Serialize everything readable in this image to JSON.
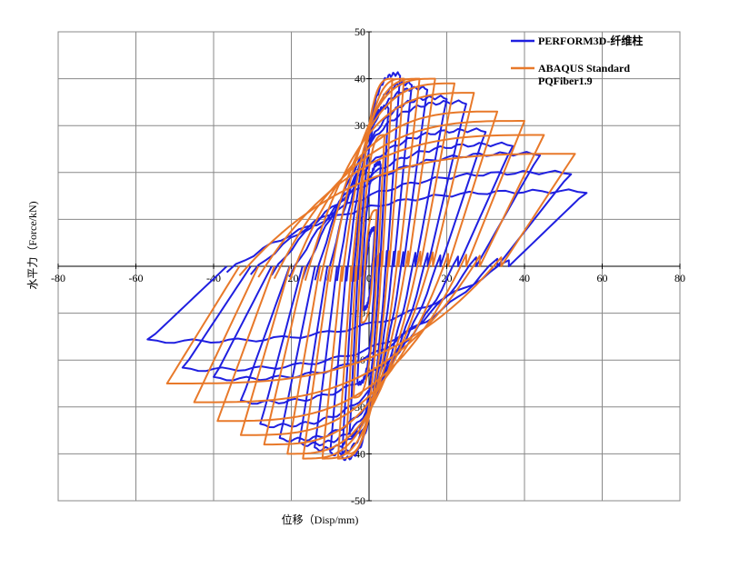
{
  "chart_data": {
    "type": "line",
    "xlabel": "位移（Disp/mm)",
    "ylabel": "水平力（Force/kN)",
    "xlim": [
      -80,
      80
    ],
    "ylim": [
      -50,
      50
    ],
    "x_ticks": [
      "-80",
      "-60",
      "-40",
      "-20",
      "0",
      "20",
      "40",
      "60",
      "80"
    ],
    "y_ticks": [
      "50",
      "40",
      "30",
      "20",
      "10",
      "0",
      "-10",
      "-20",
      "-30",
      "-40",
      "-50"
    ],
    "grid": true,
    "legend_position": "top-right",
    "series": [
      {
        "name": "PERFORM3D-纤维柱",
        "color": "#1f1fe0",
        "loops": [
          {
            "dmax": 1.5,
            "fmax": 8,
            "dmin": -1.5,
            "fmin": -9
          },
          {
            "dmax": 3,
            "fmax": 22,
            "dmin": -3,
            "fmin": -25
          },
          {
            "dmax": 5,
            "fmax": 34,
            "dmin": -5,
            "fmin": -36
          },
          {
            "dmax": 8,
            "fmax": 41,
            "dmin": -7,
            "fmin": -41
          },
          {
            "dmax": 11,
            "fmax": 39,
            "dmin": -10,
            "fmin": -40
          },
          {
            "dmax": 15,
            "fmax": 38,
            "dmin": -14,
            "fmin": -39
          },
          {
            "dmax": 20,
            "fmax": 36,
            "dmin": -18,
            "fmin": -38
          },
          {
            "dmax": 25,
            "fmax": 35,
            "dmin": -23,
            "fmin": -37
          },
          {
            "dmax": 30,
            "fmax": 29,
            "dmin": -28,
            "fmin": -34
          },
          {
            "dmax": 37,
            "fmax": 26,
            "dmin": -33,
            "fmin": -29
          },
          {
            "dmax": 44,
            "fmax": 24,
            "dmin": -40,
            "fmin": -24
          },
          {
            "dmax": 52,
            "fmax": 20,
            "dmin": -48,
            "fmin": -22
          },
          {
            "dmax": 56,
            "fmax": 16,
            "dmin": -57,
            "fmin": -16
          }
        ]
      },
      {
        "name": "ABAQUS Standard PQFiber1.9",
        "color": "#e8792a",
        "loops": [
          {
            "dmax": 2,
            "fmax": 12,
            "dmin": -2,
            "fmin": -12
          },
          {
            "dmax": 4,
            "fmax": 28,
            "dmin": -4,
            "fmin": -28
          },
          {
            "dmax": 6,
            "fmax": 40,
            "dmin": -6,
            "fmin": -40
          },
          {
            "dmax": 9,
            "fmax": 40,
            "dmin": -8,
            "fmin": -41
          },
          {
            "dmax": 13,
            "fmax": 40,
            "dmin": -12,
            "fmin": -41
          },
          {
            "dmax": 17,
            "fmax": 40,
            "dmin": -17,
            "fmin": -41
          },
          {
            "dmax": 22,
            "fmax": 39,
            "dmin": -21,
            "fmin": -40
          },
          {
            "dmax": 27,
            "fmax": 37,
            "dmin": -27,
            "fmin": -38
          },
          {
            "dmax": 33,
            "fmax": 33,
            "dmin": -33,
            "fmin": -36
          },
          {
            "dmax": 40,
            "fmax": 31,
            "dmin": -39,
            "fmin": -33
          },
          {
            "dmax": 45,
            "fmax": 28,
            "dmin": -45,
            "fmin": -29
          },
          {
            "dmax": 53,
            "fmax": 24,
            "dmin": -52,
            "fmin": -25
          }
        ]
      }
    ],
    "legend": [
      {
        "label": "PERFORM3D-纤维柱",
        "color": "#1f1fe0"
      },
      {
        "label_line1": "ABAQUS Standard",
        "label_line2": "PQFiber1.9",
        "color": "#e8792a"
      }
    ]
  }
}
